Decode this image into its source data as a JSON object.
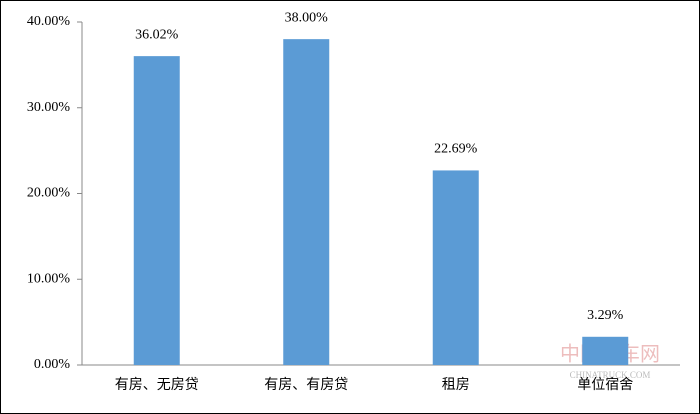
{
  "chart_data": {
    "type": "bar",
    "categories": [
      "有房、无房贷",
      "有房、有房贷",
      "租房",
      "单位宿舍"
    ],
    "values": [
      36.02,
      38.0,
      22.69,
      3.29
    ],
    "value_labels": [
      "36.02%",
      "38.00%",
      "22.69%",
      "3.29%"
    ],
    "color": "#5b9bd5",
    "ylim": [
      0,
      40
    ],
    "yticks": [
      {
        "value": 0,
        "label": "0.00%"
      },
      {
        "value": 10,
        "label": "10.00%"
      },
      {
        "value": 20,
        "label": "20.00%"
      },
      {
        "value": 30,
        "label": "30.00%"
      },
      {
        "value": 40,
        "label": "40.00%"
      }
    ],
    "grid": false
  },
  "watermark": "中国卡车网",
  "watermark_sub": "CHINATRUCK.COM"
}
